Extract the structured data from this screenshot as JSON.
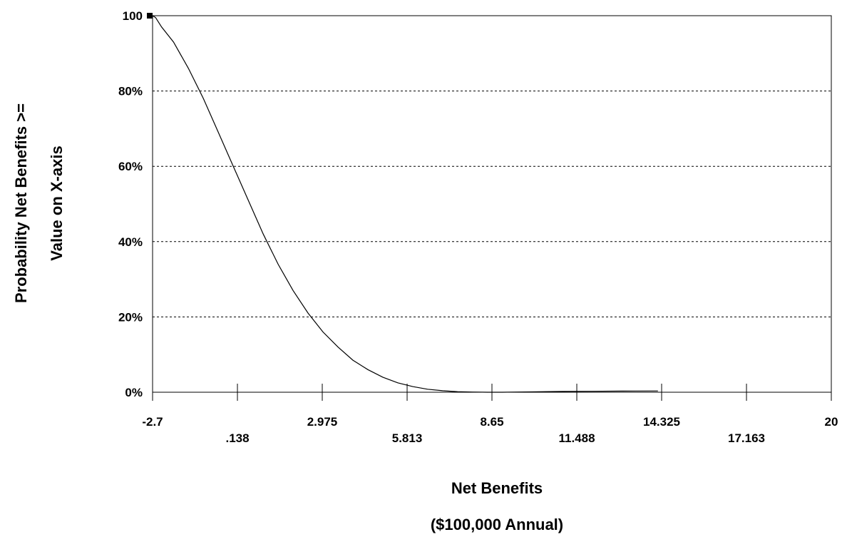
{
  "chart_data": {
    "type": "line",
    "title": "",
    "xlabel_line1": "Net Benefits",
    "xlabel_line2": "($100,000 Annual)",
    "ylabel_line1": "Probability Net Benefits >=",
    "ylabel_line2": "Value on X-axis",
    "xlim": [
      -2.7,
      20
    ],
    "ylim": [
      0,
      100
    ],
    "x_ticks_upper": [
      "-2.7",
      "2.975",
      "8.65",
      "14.325",
      "20"
    ],
    "x_ticks_lower": [
      ".138",
      "5.813",
      "11.488",
      "17.163"
    ],
    "x_tick_values_upper": [
      -2.7,
      2.975,
      8.65,
      14.325,
      20
    ],
    "x_tick_values_lower": [
      0.138,
      5.813,
      11.488,
      17.163
    ],
    "y_ticks": [
      "0%",
      "20%",
      "40%",
      "60%",
      "80%",
      "100"
    ],
    "y_tick_values": [
      0,
      20,
      40,
      60,
      80,
      100
    ],
    "grid": "horizontal-dashed",
    "series": [
      {
        "x": [
          -2.7,
          -2.6,
          -2.4,
          -2.0,
          -1.5,
          -1.0,
          -0.5,
          0.0,
          0.5,
          1.0,
          1.5,
          2.0,
          2.5,
          3.0,
          3.5,
          4.0,
          4.5,
          5.0,
          5.5,
          6.0,
          6.5,
          7.0,
          7.5,
          8.0,
          8.5,
          9.0,
          9.5,
          10.0,
          11.0,
          12.0,
          13.0,
          14.2
        ],
        "values": [
          100,
          99.5,
          97,
          93,
          86,
          78,
          69,
          60,
          51,
          42,
          34,
          27,
          21,
          16,
          12,
          8.5,
          6,
          4,
          2.5,
          1.5,
          0.8,
          0.4,
          0.15,
          0.05,
          0,
          0,
          0.05,
          0.1,
          0.2,
          0.25,
          0.3,
          0.35
        ]
      }
    ]
  }
}
